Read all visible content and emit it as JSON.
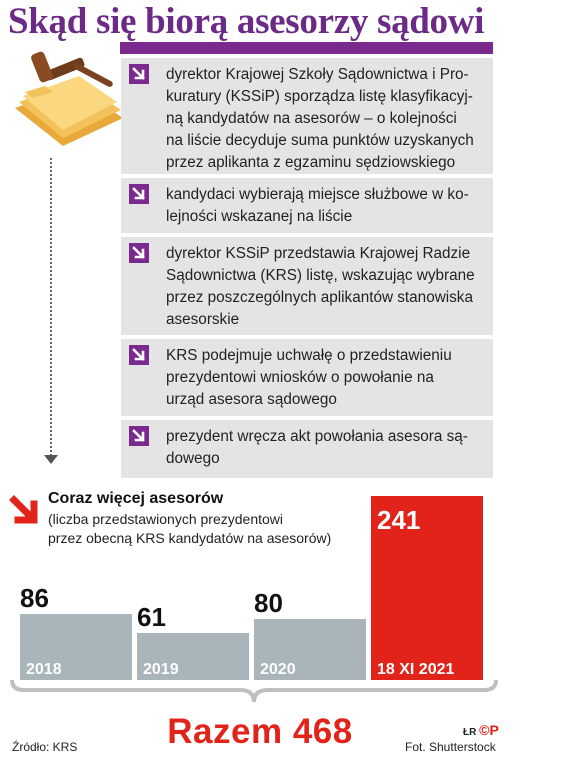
{
  "title": "Skąd się biorą asesorzy sądowi",
  "steps": [
    {
      "text": "dyrektor Krajowej Szkoły Sądownictwa i Pro-\nkuratury (KSSiP) sporządza listę klasyfikacyj-\nną kandydatów na asesorów – o kolejności\nna liście decyduje suma punktów uzyskanych\nprzez aplikanta z egzaminu sędziowskiego"
    },
    {
      "text": "kandydaci wybierają miejsce służbowe w ko-\nlejności wskazanej na liście"
    },
    {
      "text": "dyrektor KSSiP przedstawia Krajowej Radzie\nSądownictwa (KRS) listę, wskazując wybrane\nprzez poszczególnych aplikantów stanowiska\nasesorskie"
    },
    {
      "text": "KRS podejmuje uchwałę o przedstawieniu\nprezydentowi wniosków o powołanie na\nurząd asesora sądowego"
    },
    {
      "text": "prezydent wręcza akt powołania asesora są-\ndowego"
    }
  ],
  "chart_data": {
    "type": "bar",
    "title": "Coraz więcej asesorów",
    "subtitle": "(liczba przedstawionych prezydentowi\nprzez obecną KRS kandydatów na asesorów)",
    "categories": [
      "2018",
      "2019",
      "2020",
      "18 XI 2021"
    ],
    "values": [
      86,
      61,
      80,
      241
    ],
    "colors": [
      "#a9b4bb",
      "#a9b4bb",
      "#a9b4bb",
      "#e2231a"
    ],
    "ylim": [
      0,
      241
    ]
  },
  "total": "Razem 468",
  "source": "Źródło: KRS",
  "photo_credit": "Fot. Shutterstock",
  "logo": {
    "prefix": "ŁR",
    "mark": "©P"
  }
}
